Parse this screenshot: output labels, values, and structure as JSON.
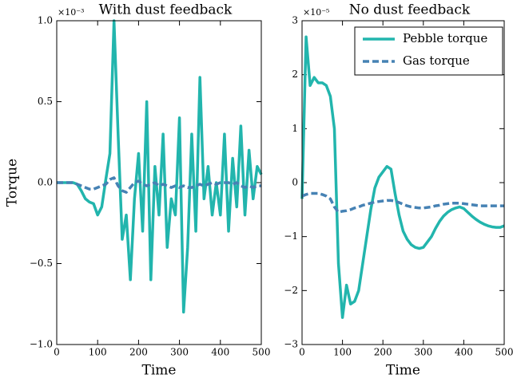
{
  "chart_data": [
    {
      "type": "line",
      "title": "With dust feedback",
      "xlabel": "Time",
      "ylabel": "Torque",
      "offset_label": "×10⁻³",
      "x": [
        0,
        10,
        20,
        30,
        40,
        50,
        60,
        70,
        80,
        90,
        100,
        110,
        120,
        130,
        140,
        150,
        160,
        170,
        180,
        190,
        200,
        210,
        220,
        230,
        240,
        250,
        260,
        270,
        280,
        290,
        300,
        310,
        320,
        330,
        340,
        350,
        360,
        370,
        380,
        390,
        400,
        410,
        420,
        430,
        440,
        450,
        460,
        470,
        480,
        490,
        500
      ],
      "series": [
        {
          "name": "Pebble torque",
          "color": "#22b5ad",
          "linestyle": "solid",
          "values": [
            0,
            0,
            0,
            0,
            0,
            -0.01,
            -0.05,
            -0.1,
            -0.12,
            -0.13,
            -0.2,
            -0.15,
            0.02,
            0.18,
            1.0,
            0.3,
            -0.35,
            -0.2,
            -0.6,
            -0.1,
            0.18,
            -0.3,
            0.5,
            -0.6,
            0.1,
            -0.2,
            0.3,
            -0.4,
            -0.1,
            -0.2,
            0.4,
            -0.8,
            -0.4,
            0.3,
            -0.3,
            0.65,
            -0.1,
            0.1,
            -0.2,
            0.0,
            -0.2,
            0.3,
            -0.3,
            0.15,
            -0.15,
            0.35,
            -0.2,
            0.2,
            -0.1,
            0.1,
            0.05
          ]
        },
        {
          "name": "Gas torque",
          "color": "#4682b4",
          "linestyle": "dashed",
          "values": [
            0,
            0,
            0,
            0,
            0,
            -0.01,
            -0.02,
            -0.03,
            -0.04,
            -0.04,
            -0.03,
            -0.02,
            -0.01,
            0.02,
            0.03,
            -0.02,
            -0.05,
            -0.06,
            -0.03,
            0,
            0.01,
            -0.01,
            -0.02,
            -0.01,
            0,
            -0.02,
            -0.01,
            -0.02,
            -0.03,
            -0.02,
            -0.03,
            -0.02,
            -0.03,
            -0.03,
            -0.02,
            -0.01,
            -0.02,
            -0.01,
            0,
            -0.01,
            0,
            0,
            0,
            -0.01,
            0,
            -0.02,
            -0.03,
            -0.02,
            -0.03,
            -0.02,
            -0.02
          ]
        }
      ],
      "xlim": [
        0,
        500
      ],
      "xticks": [
        0,
        100,
        200,
        300,
        400,
        500
      ],
      "ylim": [
        -1.0,
        1.0
      ],
      "yticks": [
        {
          "value": -1.0,
          "label": "−1.0"
        },
        {
          "value": -0.5,
          "label": "−0.5"
        },
        {
          "value": 0,
          "label": "0.0"
        },
        {
          "value": 0.5,
          "label": "0.5"
        },
        {
          "value": 1.0,
          "label": "1.0"
        }
      ]
    },
    {
      "type": "line",
      "title": "No dust feedback",
      "xlabel": "Time",
      "offset_label": "×10⁻⁵",
      "legend": "upper right",
      "x": [
        0,
        10,
        20,
        30,
        40,
        50,
        60,
        70,
        80,
        90,
        100,
        110,
        120,
        130,
        140,
        150,
        160,
        170,
        180,
        190,
        200,
        210,
        220,
        230,
        240,
        250,
        260,
        270,
        280,
        290,
        300,
        310,
        320,
        330,
        340,
        350,
        360,
        370,
        380,
        390,
        400,
        410,
        420,
        430,
        440,
        450,
        460,
        470,
        480,
        490,
        500
      ],
      "series": [
        {
          "name": "Pebble torque",
          "color": "#22b5ad",
          "linestyle": "solid",
          "values": [
            -0.3,
            2.7,
            1.8,
            1.95,
            1.85,
            1.85,
            1.8,
            1.6,
            1.0,
            -1.5,
            -2.5,
            -1.9,
            -2.25,
            -2.2,
            -2.0,
            -1.5,
            -1.0,
            -0.5,
            -0.1,
            0.1,
            0.2,
            0.3,
            0.25,
            -0.2,
            -0.6,
            -0.9,
            -1.05,
            -1.15,
            -1.2,
            -1.22,
            -1.2,
            -1.1,
            -1.0,
            -0.85,
            -0.72,
            -0.62,
            -0.55,
            -0.5,
            -0.47,
            -0.45,
            -0.48,
            -0.55,
            -0.62,
            -0.68,
            -0.73,
            -0.77,
            -0.8,
            -0.82,
            -0.83,
            -0.83,
            -0.8
          ]
        },
        {
          "name": "Gas torque",
          "color": "#4682b4",
          "linestyle": "dashed",
          "values": [
            -0.25,
            -0.22,
            -0.2,
            -0.2,
            -0.2,
            -0.22,
            -0.25,
            -0.3,
            -0.45,
            -0.55,
            -0.53,
            -0.52,
            -0.5,
            -0.47,
            -0.45,
            -0.42,
            -0.4,
            -0.38,
            -0.36,
            -0.35,
            -0.34,
            -0.33,
            -0.33,
            -0.34,
            -0.37,
            -0.4,
            -0.43,
            -0.45,
            -0.46,
            -0.47,
            -0.47,
            -0.46,
            -0.45,
            -0.43,
            -0.42,
            -0.4,
            -0.39,
            -0.38,
            -0.38,
            -0.38,
            -0.39,
            -0.4,
            -0.41,
            -0.42,
            -0.43,
            -0.43,
            -0.43,
            -0.43,
            -0.43,
            -0.43,
            -0.43
          ]
        }
      ],
      "xlim": [
        0,
        500
      ],
      "xticks": [
        0,
        100,
        200,
        300,
        400,
        500
      ],
      "ylim": [
        -3,
        3
      ],
      "yticks": [
        {
          "value": -3,
          "label": "−3"
        },
        {
          "value": -2,
          "label": "−2"
        },
        {
          "value": -1,
          "label": "−1"
        },
        0,
        1,
        2,
        3
      ]
    }
  ]
}
